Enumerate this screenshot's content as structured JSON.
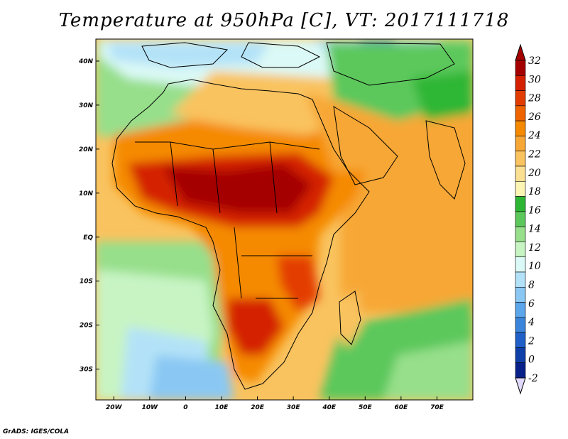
{
  "title": "Temperature at 950hPa [C], VT: 2017111718",
  "credit": "GrADS: IGES/COLA",
  "map": {
    "type": "filled-contour map",
    "lon_range": [
      -25,
      80
    ],
    "lat_range": [
      -37,
      45
    ],
    "lat_labels": [
      {
        "value": 40,
        "label": "40N"
      },
      {
        "value": 30,
        "label": "30N"
      },
      {
        "value": 20,
        "label": "20N"
      },
      {
        "value": 10,
        "label": "10N"
      },
      {
        "value": 0,
        "label": "EQ"
      },
      {
        "value": -10,
        "label": "10S"
      },
      {
        "value": -20,
        "label": "20S"
      },
      {
        "value": -30,
        "label": "30S"
      }
    ],
    "lon_labels": [
      {
        "value": -20,
        "label": "20W"
      },
      {
        "value": -10,
        "label": "10W"
      },
      {
        "value": 0,
        "label": "0"
      },
      {
        "value": 10,
        "label": "10E"
      },
      {
        "value": 20,
        "label": "20E"
      },
      {
        "value": 30,
        "label": "30E"
      },
      {
        "value": 40,
        "label": "40E"
      },
      {
        "value": 50,
        "label": "50E"
      },
      {
        "value": 60,
        "label": "60E"
      },
      {
        "value": 70,
        "label": "70E"
      }
    ]
  },
  "colorbar": {
    "labels": [
      "32",
      "30",
      "28",
      "26",
      "24",
      "22",
      "20",
      "18",
      "16",
      "14",
      "12",
      "10",
      "8",
      "6",
      "4",
      "2",
      "0",
      "-2"
    ],
    "colors": [
      "#a50000",
      "#d42000",
      "#e33c00",
      "#f06400",
      "#f58a00",
      "#f7a735",
      "#f9c35f",
      "#fbe094",
      "#fdf5b4",
      "#2db634",
      "#5cc85c",
      "#97df8b",
      "#c8f4c4",
      "#dbf9f6",
      "#b3e2f8",
      "#8ac8f3",
      "#5ca6ec",
      "#3a85db",
      "#2060c8",
      "#0f3fa8",
      "#08218a"
    ],
    "over_color": "#a50000",
    "under_color": "#e1d9fb"
  }
}
